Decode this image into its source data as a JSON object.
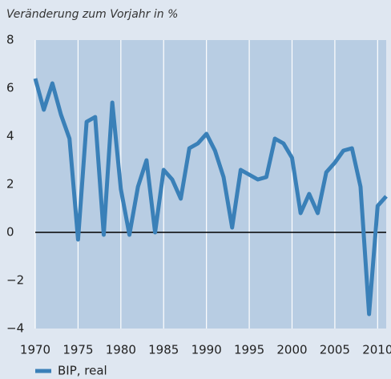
{
  "chart_data": {
    "type": "line",
    "title": "Veränderung zum Vorjahr in %",
    "x": [
      1970,
      1971,
      1972,
      1973,
      1974,
      1975,
      1976,
      1977,
      1978,
      1979,
      1980,
      1981,
      1982,
      1983,
      1984,
      1985,
      1986,
      1987,
      1988,
      1989,
      1990,
      1991,
      1992,
      1993,
      1994,
      1995,
      1996,
      1997,
      1998,
      1999,
      2000,
      2001,
      2002,
      2003,
      2004,
      2005,
      2006,
      2007,
      2008,
      2009,
      2010,
      2011
    ],
    "series": [
      {
        "name": "BIP, real",
        "color": "#3a80b8",
        "values": [
          6.4,
          5.1,
          6.2,
          4.9,
          3.9,
          -0.3,
          4.6,
          4.8,
          -0.1,
          5.4,
          1.8,
          -0.1,
          1.9,
          3.0,
          0.0,
          2.6,
          2.2,
          1.4,
          3.5,
          3.7,
          4.1,
          3.4,
          2.3,
          0.2,
          2.6,
          2.4,
          2.2,
          2.3,
          3.9,
          3.7,
          3.1,
          0.8,
          1.6,
          0.8,
          2.5,
          2.9,
          3.4,
          3.5,
          1.9,
          -3.4,
          1.1,
          1.5
        ]
      }
    ],
    "xlim": [
      1970,
      2011
    ],
    "ylim": [
      -4,
      8
    ],
    "xticks": [
      1970,
      1975,
      1980,
      1985,
      1990,
      1995,
      2000,
      2005,
      2010
    ],
    "yticks": [
      {
        "value": -4,
        "label": "−4"
      },
      {
        "value": -2,
        "label": "−2"
      },
      0,
      2,
      4,
      6,
      8
    ],
    "grid": "x",
    "zero_line": true,
    "legend": "bottom-left"
  }
}
